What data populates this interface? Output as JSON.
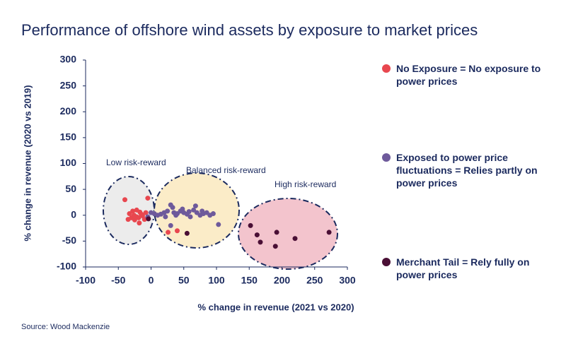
{
  "chart_data": {
    "type": "scatter",
    "title": "Performance of offshore wind assets by exposure to market prices",
    "x_label": "% change in revenue (2021 vs 2020)",
    "y_label": "% change in revenue (2020 vs 2019)",
    "source": "Source: Wood Mackenzie",
    "annotations": [
      "Low risk-reward",
      "Balanced risk-reward",
      "High risk-reward"
    ],
    "xlim": [
      -100,
      300
    ],
    "xticks": [
      -100,
      -50,
      0,
      50,
      100,
      150,
      200,
      250,
      300
    ],
    "ylim": [
      -100,
      300
    ],
    "yticks": [
      -100,
      -50,
      0,
      50,
      100,
      150,
      200,
      250,
      300
    ],
    "grid": false,
    "series": [
      {
        "name": "No Exposure = No exposure to power prices",
        "color": "#e8474f",
        "x": [
          -40,
          -5,
          -33,
          -28,
          -22,
          -17,
          -30,
          -25,
          -19,
          -13,
          -10,
          -35,
          -26,
          -8,
          -18,
          -15,
          -22,
          26,
          40
        ],
        "y": [
          30,
          33,
          3,
          8,
          10,
          6,
          -5,
          -9,
          -5,
          -1,
          -8,
          -8,
          0,
          5,
          -15,
          2,
          -3,
          -33,
          -30
        ]
      },
      {
        "name": "Exposed to power price fluctuations = Relies partly on power prices",
        "color": "#6e5a9b",
        "x": [
          -5,
          0,
          5,
          10,
          15,
          20,
          25,
          30,
          33,
          35,
          38,
          40,
          45,
          50,
          55,
          60,
          65,
          68,
          70,
          75,
          80,
          85,
          90,
          95,
          103,
          30,
          22,
          48,
          58,
          78
        ],
        "y": [
          -3,
          5,
          3,
          0,
          2,
          5,
          8,
          20,
          15,
          5,
          0,
          3,
          8,
          5,
          2,
          -3,
          10,
          18,
          5,
          0,
          3,
          5,
          0,
          3,
          -18,
          -20,
          -3,
          12,
          7,
          8
        ]
      },
      {
        "name": "Merchant Tail = Rely fully on power prices",
        "color": "#4a0f35",
        "x": [
          -4,
          55,
          152,
          162,
          167,
          192,
          190,
          220,
          272
        ],
        "y": [
          -7,
          -35,
          -20,
          -38,
          -52,
          -33,
          -60,
          -45,
          -33
        ]
      }
    ]
  }
}
